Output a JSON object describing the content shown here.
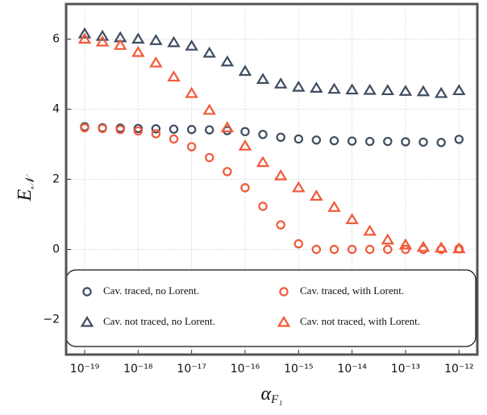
{
  "chart_data": {
    "type": "scatter",
    "xlabel": {
      "main": "α",
      "sub": "F₁"
    },
    "ylabel": {
      "main": "E",
      "sub": "𝒩"
    },
    "xscale": "log",
    "x": [
      1e-19,
      2.15e-19,
      4.64e-19,
      1e-18,
      2.15e-18,
      4.64e-18,
      1e-17,
      2.15e-17,
      4.64e-17,
      1e-16,
      2.15e-16,
      4.64e-16,
      1e-15,
      2.15e-15,
      4.64e-15,
      1e-14,
      2.15e-14,
      4.64e-14,
      1e-13,
      2.15e-13,
      4.64e-13,
      1e-12
    ],
    "xlim": [
      4.5e-20,
      2.2e-12
    ],
    "xticks": [
      {
        "value": 1e-19,
        "label": "10⁻¹⁹"
      },
      {
        "value": 1e-18,
        "label": "10⁻¹⁸"
      },
      {
        "value": 1e-17,
        "label": "10⁻¹⁷"
      },
      {
        "value": 1e-16,
        "label": "10⁻¹⁶"
      },
      {
        "value": 1e-15,
        "label": "10⁻¹⁵"
      },
      {
        "value": 1e-14,
        "label": "10⁻¹⁴"
      },
      {
        "value": 1e-13,
        "label": "10⁻¹³"
      },
      {
        "value": 1e-12,
        "label": "10⁻¹²"
      }
    ],
    "ylim": [
      -3,
      7
    ],
    "yticks": [
      {
        "value": -2,
        "label": "−2"
      },
      0,
      2,
      4,
      6
    ],
    "grid": true,
    "legend": "bottom",
    "series": [
      {
        "name": "Cav. traced, no Lorent.",
        "color": "#3e4d60",
        "marker": "circle",
        "values": [
          3.5,
          3.47,
          3.46,
          3.45,
          3.44,
          3.43,
          3.42,
          3.41,
          3.39,
          3.36,
          3.28,
          3.2,
          3.15,
          3.12,
          3.1,
          3.09,
          3.08,
          3.08,
          3.07,
          3.06,
          3.05,
          3.14
        ]
      },
      {
        "name": "Cav. traced, with Lorent.",
        "color": "#f05a3a",
        "marker": "circle",
        "values": [
          3.47,
          3.45,
          3.42,
          3.38,
          3.3,
          3.15,
          2.93,
          2.62,
          2.22,
          1.76,
          1.23,
          0.7,
          0.16,
          0,
          0,
          0,
          0,
          0,
          0,
          0,
          0,
          0.02
        ]
      },
      {
        "name": "Cav. not traced, no Lorent.",
        "color": "#3e4d60",
        "marker": "triangle",
        "values": [
          6.15,
          6.08,
          6.04,
          6.0,
          5.96,
          5.9,
          5.8,
          5.6,
          5.35,
          5.08,
          4.85,
          4.72,
          4.63,
          4.6,
          4.57,
          4.55,
          4.54,
          4.53,
          4.51,
          4.5,
          4.45,
          4.53
        ]
      },
      {
        "name": "Cav. not traced, with Lorent.",
        "color": "#f05a3a",
        "marker": "triangle",
        "values": [
          6.0,
          5.92,
          5.82,
          5.62,
          5.32,
          4.92,
          4.45,
          3.97,
          3.47,
          2.95,
          2.48,
          2.1,
          1.76,
          1.52,
          1.2,
          0.85,
          0.52,
          0.27,
          0.13,
          0.06,
          0.04,
          0.02
        ]
      }
    ]
  }
}
